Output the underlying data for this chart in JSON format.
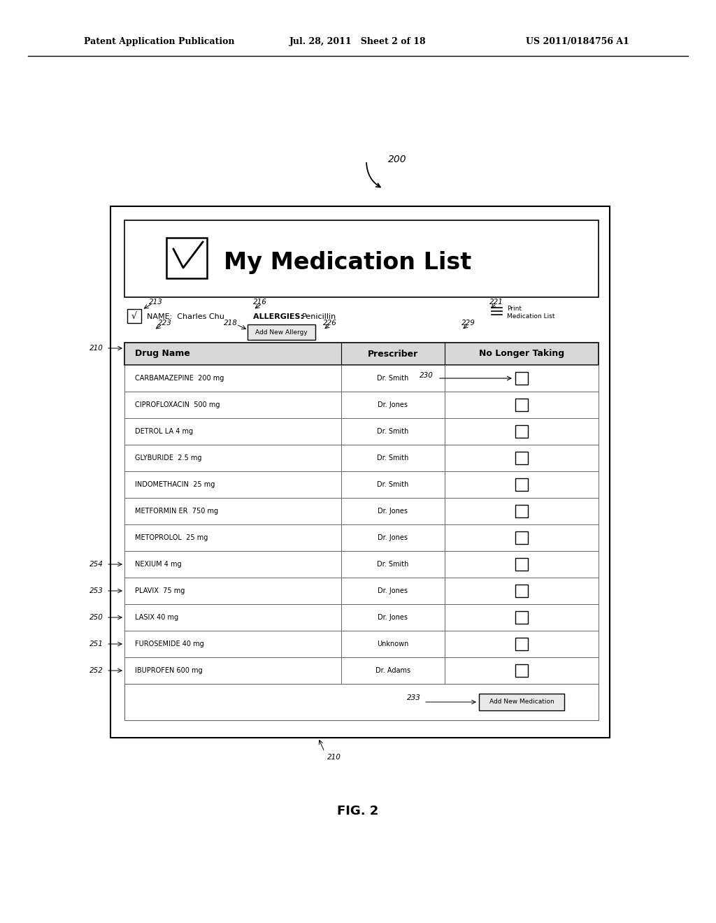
{
  "header_text_left": "Patent Application Publication",
  "header_text_mid": "Jul. 28, 2011   Sheet 2 of 18",
  "header_text_right": "US 2011/0184756 A1",
  "fig_label": "FIG. 2",
  "ref_200": "200",
  "title_text": "My Medication List",
  "name_label": "NAME:  Charles Chu",
  "allergies_label": "ALLERGIES:  Penicillin",
  "add_allergy_btn": "Add New Allergy",
  "add_med_btn": "Add New Medication",
  "col_headers": [
    "Drug Name",
    "Prescriber",
    "No Longer Taking"
  ],
  "medications": [
    [
      "CARBAMAZEPINE  200 mg",
      "Dr. Smith"
    ],
    [
      "CIPROFLOXACIN  500 mg",
      "Dr. Jones"
    ],
    [
      "DETROL LA 4 mg",
      "Dr. Smith"
    ],
    [
      "GLYBURIDE  2.5 mg",
      "Dr. Smith"
    ],
    [
      "INDOMETHACIN  25 mg",
      "Dr. Smith"
    ],
    [
      "METFORMIN ER  750 mg",
      "Dr. Jones"
    ],
    [
      "METOPROLOL  25 mg",
      "Dr. Jones"
    ],
    [
      "NEXIUM 4 mg",
      "Dr. Smith"
    ],
    [
      "PLAVIX  75 mg",
      "Dr. Jones"
    ],
    [
      "LASIX 40 mg",
      "Dr. Jones"
    ],
    [
      "FUROSEMIDE 40 mg",
      "Unknown"
    ],
    [
      "IBUPROFEN 600 mg",
      "Dr. Adams"
    ]
  ],
  "bg_color": "#ffffff"
}
